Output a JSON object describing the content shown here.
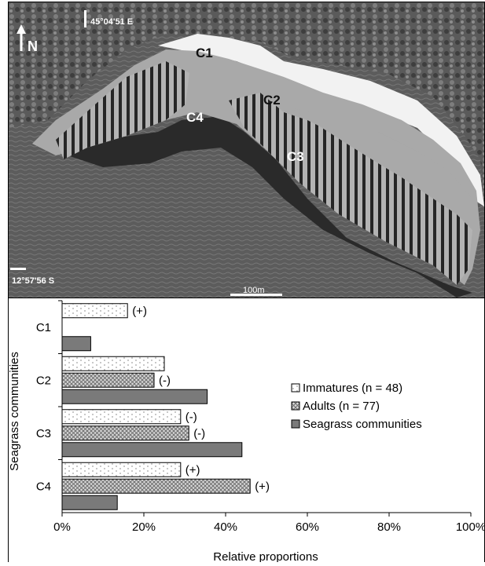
{
  "map": {
    "coord_east": "45°04'51 E",
    "coord_south": "12°57'56 S",
    "north_label": "N",
    "scale_label": "100m",
    "zone_labels": [
      "C1",
      "C2",
      "C3",
      "C4"
    ]
  },
  "chart_data": {
    "type": "bar",
    "orientation": "horizontal",
    "categories": [
      "C1",
      "C2",
      "C3",
      "C4"
    ],
    "series": [
      {
        "name": "Immatures (n = 48)",
        "values": [
          16,
          25,
          29,
          29
        ],
        "annotations": [
          "(+)",
          "",
          "(-)",
          "(+)"
        ]
      },
      {
        "name": "Adults (n = 77)",
        "values": [
          null,
          22.5,
          31,
          46
        ],
        "annotations": [
          "",
          "(-)",
          "(-)",
          "(+)"
        ]
      },
      {
        "name": "Seagrass communities",
        "values": [
          7,
          35.5,
          44,
          13.5
        ],
        "annotations": [
          "",
          "",
          "",
          ""
        ]
      }
    ],
    "xlim": [
      0,
      100
    ],
    "xticks": [
      "0%",
      "20%",
      "40%",
      "60%",
      "80%",
      "100%"
    ],
    "xlabel": "Relative proportions",
    "ylabel": "Seagrass communities",
    "legend_position": "right"
  },
  "colors": {
    "immatures_fill": "#ffffff",
    "immatures_dot": "#b4b4b4",
    "adults_hatch": "#8a8a8a",
    "seagrass_fill": "#7a7a7a",
    "map_zone_fill": "#a7a7a7",
    "map_deep": "#3a3a3a"
  }
}
